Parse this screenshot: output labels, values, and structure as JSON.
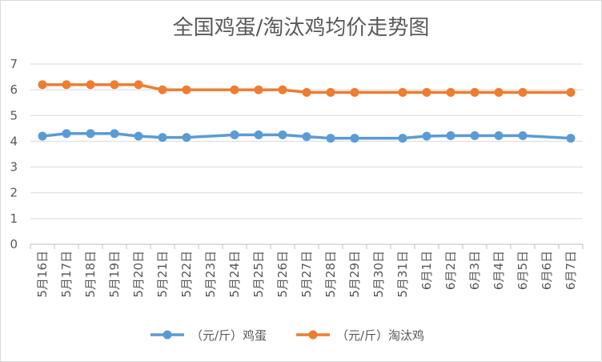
{
  "chart_data": {
    "type": "line",
    "title": "全国鸡蛋/淘汰鸡均价走势图",
    "xlabel": "",
    "ylabel": "",
    "ylim": [
      0,
      7
    ],
    "yticks": [
      0,
      1,
      2,
      3,
      4,
      5,
      6,
      7
    ],
    "grid": true,
    "legend_position": "bottom",
    "categories": [
      "5月16日",
      "5月17日",
      "5月18日",
      "5月19日",
      "5月20日",
      "5月21日",
      "5月22日",
      "5月23日",
      "5月24日",
      "5月25日",
      "5月26日",
      "5月27日",
      "5月28日",
      "5月29日",
      "5月30日",
      "5月31日",
      "6月1日",
      "6月2日",
      "6月3日",
      "6月4日",
      "6月5日",
      "6月6日",
      "6月7日"
    ],
    "series": [
      {
        "name": "（元/斤）鸡蛋",
        "color": "#5B9BD5",
        "values": [
          4.2,
          4.3,
          4.3,
          4.3,
          4.2,
          4.15,
          4.15,
          null,
          4.25,
          4.25,
          4.25,
          4.18,
          4.12,
          4.12,
          null,
          4.12,
          4.2,
          4.22,
          4.22,
          4.22,
          4.22,
          null,
          4.12
        ]
      },
      {
        "name": "（元/斤）淘汰鸡",
        "color": "#ED7D31",
        "values": [
          6.2,
          6.2,
          6.2,
          6.2,
          6.2,
          6.0,
          6.0,
          null,
          6.0,
          6.0,
          6.0,
          5.9,
          5.9,
          5.9,
          null,
          5.9,
          5.9,
          5.9,
          5.9,
          5.9,
          5.9,
          null,
          5.9
        ]
      }
    ]
  }
}
